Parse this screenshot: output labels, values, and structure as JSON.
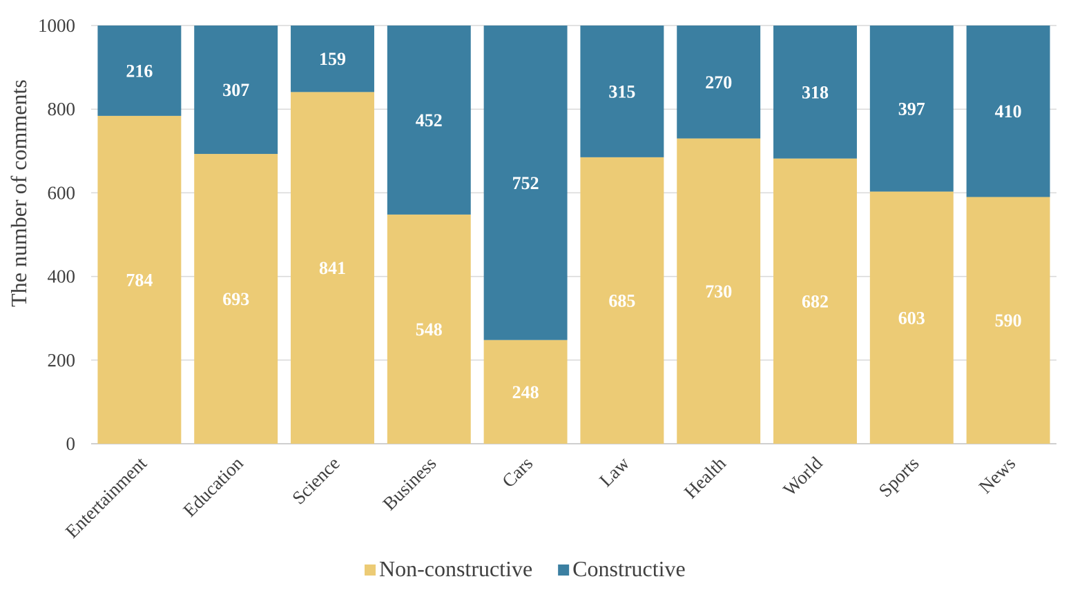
{
  "chart_data": {
    "type": "bar",
    "stacked": true,
    "title": "",
    "xlabel": "",
    "ylabel": "The number of comments",
    "ylim": [
      0,
      1000
    ],
    "yticks": [
      0,
      200,
      400,
      600,
      800,
      1000
    ],
    "grid": true,
    "legend_position": "bottom",
    "categories": [
      "Entertainment",
      "Education",
      "Science",
      "Business",
      "Cars",
      "Law",
      "Health",
      "World",
      "Sports",
      "News"
    ],
    "series": [
      {
        "name": "Non-constructive",
        "color": "#ECCB75",
        "values": [
          784,
          693,
          841,
          548,
          248,
          685,
          730,
          682,
          603,
          590
        ]
      },
      {
        "name": "Constructive",
        "color": "#3B7FA1",
        "values": [
          216,
          307,
          159,
          452,
          752,
          315,
          270,
          318,
          397,
          410
        ]
      }
    ]
  }
}
